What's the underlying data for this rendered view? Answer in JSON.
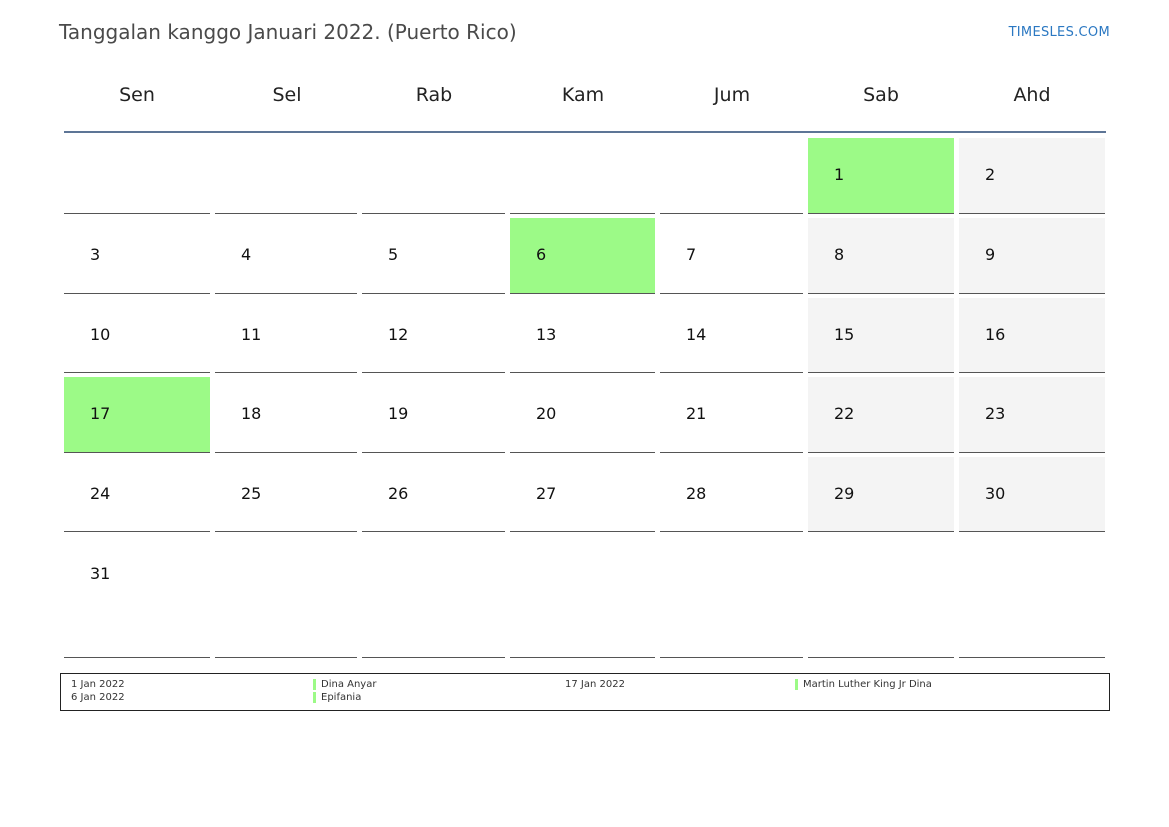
{
  "title": "Tanggalan kanggo Januari 2022. (Puerto Rico)",
  "site": "TIMESLES.COM",
  "colors": {
    "holiday": "#9cfa87",
    "weekend": "#f4f4f4",
    "header_rule": "#5d7596",
    "link": "#2b78c2"
  },
  "weekdays": [
    "Sen",
    "Sel",
    "Rab",
    "Kam",
    "Jum",
    "Sab",
    "Ahd"
  ],
  "weeks": [
    [
      "",
      "",
      "",
      "",
      "",
      "1",
      "2"
    ],
    [
      "3",
      "4",
      "5",
      "6",
      "7",
      "8",
      "9"
    ],
    [
      "10",
      "11",
      "12",
      "13",
      "14",
      "15",
      "16"
    ],
    [
      "17",
      "18",
      "19",
      "20",
      "21",
      "22",
      "23"
    ],
    [
      "24",
      "25",
      "26",
      "27",
      "28",
      "29",
      "30"
    ],
    [
      "31",
      "",
      "",
      "",
      "",
      "",
      ""
    ]
  ],
  "holiday_days": [
    "1",
    "6",
    "17"
  ],
  "legend": {
    "left": [
      {
        "date": "1 Jan 2022",
        "name": "Dina Anyar"
      },
      {
        "date": "6 Jan 2022",
        "name": "Epifania"
      }
    ],
    "right": [
      {
        "date": "17 Jan 2022",
        "name": "Martin Luther King Jr Dina"
      }
    ]
  }
}
